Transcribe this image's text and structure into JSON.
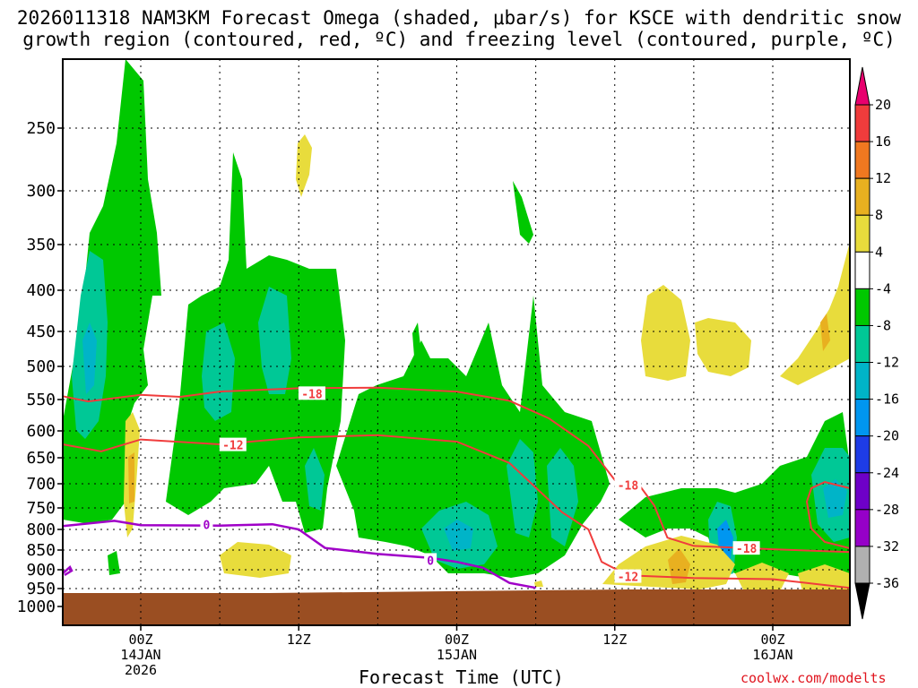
{
  "title_line1": "2026011318 NAM3KM Forecast Omega (shaded, μbar/s) for KSCE with dendritic snow",
  "title_line2": "growth region (contoured, red, ºC) and freezing level (contoured, purple, ºC)",
  "x_axis_title": "Forecast Time (UTC)",
  "credit": "coolwx.com/modelts",
  "chart_data": {
    "type": "heatmap",
    "title": "2026011318 NAM3KM Forecast Omega (shaded, μbar/s) for KSCE with dendritic snow growth region (contoured, red, ºC) and freezing level (contoured, purple, ºC)",
    "xlabel": "Forecast Time (UTC)",
    "ylabel": "",
    "x_range_hours": [
      -6,
      54
    ],
    "y_pressure_levels": [
      250,
      300,
      350,
      400,
      450,
      500,
      550,
      600,
      650,
      700,
      750,
      800,
      850,
      900,
      950,
      1000
    ],
    "y_range": [
      1000,
      200
    ],
    "x_ticks": [
      {
        "hour": 0,
        "lines": [
          "00Z",
          "14JAN",
          "2026"
        ]
      },
      {
        "hour": 12,
        "lines": [
          "12Z"
        ]
      },
      {
        "hour": 24,
        "lines": [
          "00Z",
          "15JAN"
        ]
      },
      {
        "hour": 36,
        "lines": [
          "12Z"
        ]
      },
      {
        "hour": 48,
        "lines": [
          "00Z",
          "16JAN"
        ]
      }
    ],
    "colorbar": {
      "units": "μbar/s",
      "labels": [
        "20",
        "16",
        "12",
        "8",
        "4",
        "-4",
        "-8",
        "-12",
        "-16",
        "-20",
        "-24",
        "-28",
        "-32",
        "-36"
      ],
      "colors": [
        "#e8006e",
        "#f03c3c",
        "#f07820",
        "#e8b020",
        "#e8dc3c",
        "#ffffff",
        "#00c800",
        "#00c896",
        "#00b4c8",
        "#0096f0",
        "#1e3ce6",
        "#6e00c8",
        "#9600c8",
        "#b0b0b0",
        "#000000"
      ]
    },
    "contour_labels": [
      {
        "field": "temperature",
        "value": "-18",
        "color": "#f03c3c"
      },
      {
        "field": "temperature",
        "value": "-12",
        "color": "#f03c3c"
      },
      {
        "field": "temperature",
        "value": "-18",
        "color": "#f03c3c"
      },
      {
        "field": "temperature",
        "value": "-12",
        "color": "#f03c3c"
      },
      {
        "field": "temperature",
        "value": "-18",
        "color": "#f03c3c"
      },
      {
        "field": "freezing_level",
        "value": "0",
        "color": "#a000c8"
      },
      {
        "field": "freezing_level",
        "value": "0",
        "color": "#a000c8"
      }
    ],
    "dgz_upper_18C_hPa": [
      [
        -6,
        545
      ],
      [
        -4,
        553
      ],
      [
        0,
        543
      ],
      [
        3,
        546
      ],
      [
        6,
        538
      ],
      [
        12,
        533
      ],
      [
        18,
        532
      ],
      [
        24,
        538
      ],
      [
        28,
        552
      ],
      [
        31,
        580
      ],
      [
        34,
        628
      ],
      [
        36,
        693
      ],
      [
        38,
        708
      ],
      [
        39,
        745
      ],
      [
        40,
        820
      ],
      [
        42,
        840
      ],
      [
        48,
        848
      ],
      [
        54,
        855
      ]
    ],
    "dgz_lower_12C_hPa": [
      [
        -6,
        625
      ],
      [
        -3,
        638
      ],
      [
        0,
        616
      ],
      [
        6,
        625
      ],
      [
        12,
        612
      ],
      [
        18,
        608
      ],
      [
        24,
        620
      ],
      [
        28,
        660
      ],
      [
        32,
        760
      ],
      [
        34,
        800
      ],
      [
        35,
        880
      ],
      [
        37,
        915
      ],
      [
        42,
        922
      ],
      [
        48,
        925
      ],
      [
        54,
        948
      ]
    ],
    "freezing_level_0C_hPa": [
      [
        -6,
        792
      ],
      [
        -2,
        780
      ],
      [
        0,
        790
      ],
      [
        6,
        791
      ],
      [
        10,
        788
      ],
      [
        12,
        800
      ],
      [
        14,
        845
      ],
      [
        18,
        860
      ],
      [
        22,
        870
      ],
      [
        24,
        880
      ],
      [
        26,
        895
      ],
      [
        28,
        935
      ],
      [
        30,
        948
      ]
    ]
  }
}
